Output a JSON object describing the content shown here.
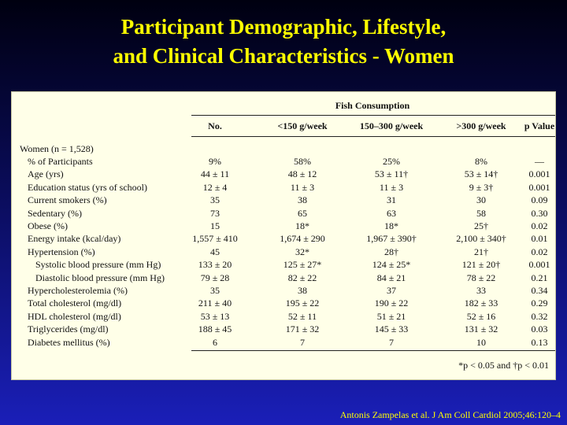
{
  "slide": {
    "title_line1": "Participant Demographic, Lifestyle,",
    "title_line2": "and Clinical Characteristics - Women",
    "citation": "Antonis Zampelas et al. J Am Coll Cardiol 2005;46:120–4"
  },
  "table": {
    "group_header": "Fish Consumption",
    "columns": [
      "No.",
      "<150 g/week",
      "150–300 g/week",
      ">300 g/week",
      "p Value"
    ],
    "group_label": "Women (n = 1,528)",
    "rows": [
      {
        "label": "% of Participants",
        "indent": 1,
        "cells": [
          "9%",
          "58%",
          "25%",
          "8%",
          "—"
        ]
      },
      {
        "label": "Age (yrs)",
        "indent": 1,
        "cells": [
          "44 ± 11",
          "48 ± 12",
          "53 ± 11†",
          "53 ± 14†",
          "0.001"
        ]
      },
      {
        "label": "Education status (yrs of school)",
        "indent": 1,
        "cells": [
          "12 ± 4",
          "11 ± 3",
          "11 ± 3",
          "9 ± 3†",
          "0.001"
        ]
      },
      {
        "label": "Current smokers (%)",
        "indent": 1,
        "cells": [
          "35",
          "38",
          "31",
          "30",
          "0.09"
        ]
      },
      {
        "label": "Sedentary (%)",
        "indent": 1,
        "cells": [
          "73",
          "65",
          "63",
          "58",
          "0.30"
        ]
      },
      {
        "label": "Obese (%)",
        "indent": 1,
        "cells": [
          "15",
          "18*",
          "18*",
          "25†",
          "0.02"
        ]
      },
      {
        "label": "Energy intake (kcal/day)",
        "indent": 1,
        "cells": [
          "1,557 ± 410",
          "1,674 ± 290",
          "1,967 ± 390†",
          "2,100 ± 340†",
          "0.01"
        ]
      },
      {
        "label": "Hypertension (%)",
        "indent": 1,
        "cells": [
          "45",
          "32*",
          "28†",
          "21†",
          "0.02"
        ]
      },
      {
        "label": "Systolic blood pressure (mm Hg)",
        "indent": 2,
        "cells": [
          "133 ± 20",
          "125 ± 27*",
          "124 ± 25*",
          "121 ± 20†",
          "0.001"
        ]
      },
      {
        "label": "Diastolic blood pressure (mm Hg)",
        "indent": 2,
        "cells": [
          "79 ± 28",
          "82 ± 22",
          "84 ± 21",
          "78 ± 22",
          "0.21"
        ]
      },
      {
        "label": "Hypercholesterolemia (%)",
        "indent": 1,
        "cells": [
          "35",
          "38",
          "37",
          "33",
          "0.34"
        ]
      },
      {
        "label": "Total cholesterol (mg/dl)",
        "indent": 1,
        "cells": [
          "211 ± 40",
          "195 ± 22",
          "190 ± 22",
          "182 ± 33",
          "0.29"
        ]
      },
      {
        "label": "HDL cholesterol (mg/dl)",
        "indent": 1,
        "cells": [
          "53 ± 13",
          "52 ± 11",
          "51 ± 21",
          "52 ± 16",
          "0.32"
        ]
      },
      {
        "label": "Triglycerides (mg/dl)",
        "indent": 1,
        "cells": [
          "188 ± 45",
          "171 ± 32",
          "145 ± 33",
          "131 ± 32",
          "0.03"
        ]
      },
      {
        "label": "Diabetes mellitus (%)",
        "indent": 1,
        "cells": [
          "6",
          "7",
          "7",
          "10",
          "0.13"
        ]
      }
    ],
    "footnote": "*p < 0.05 and †p < 0.01"
  }
}
